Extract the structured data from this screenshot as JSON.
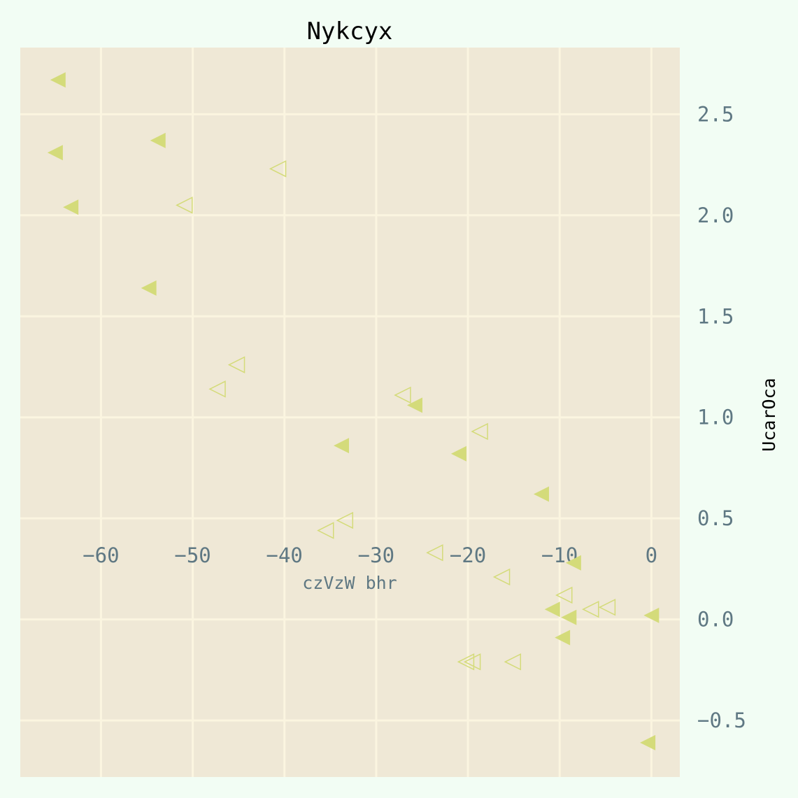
{
  "chart_data": {
    "type": "scatter",
    "title": "Nykcyx",
    "xlabel": "czVzW bhr",
    "ylabel": "UcarOca",
    "xlim": [
      -68.8,
      3.1
    ],
    "ylim": [
      -0.78,
      2.83
    ],
    "xticks": [
      -60,
      -50,
      -40,
      -30,
      -20,
      -10,
      0
    ],
    "xtick_labels": [
      "−60",
      "−50",
      "−40",
      "−30",
      "−20",
      "−10",
      "0"
    ],
    "yticks": [
      -0.5,
      0.0,
      0.5,
      1.0,
      1.5,
      2.0,
      2.5
    ],
    "ytick_labels": [
      "−0.5",
      "0.0",
      "0.5",
      "1.0",
      "1.5",
      "2.0",
      "2.5"
    ],
    "grid": true,
    "marker": "triangle-left",
    "colors": {
      "background": "#f2fdf4",
      "plot_area": "#efe8d6",
      "grid": "#fbf5e0",
      "marker": "#d4db7a"
    },
    "series": [
      {
        "style": "filled",
        "x": [
          -64.7,
          -65.0,
          -53.8,
          -63.3,
          -54.8,
          -25.8,
          -33.8,
          -21.0,
          -12.0,
          -8.5,
          -10.8,
          -9.0,
          0.0,
          -9.7,
          -0.4
        ],
        "y": [
          2.67,
          2.31,
          2.37,
          2.04,
          1.64,
          1.06,
          0.86,
          0.82,
          0.62,
          0.28,
          0.05,
          0.01,
          0.02,
          -0.09,
          -0.61
        ]
      },
      {
        "style": "hollow",
        "x": [
          -40.7,
          -50.9,
          -45.2,
          -47.3,
          -27.1,
          -18.7,
          -33.4,
          -35.5,
          -23.6,
          -16.3,
          -9.5,
          -6.6,
          -4.8,
          -20.2,
          -19.5,
          -15.1
        ],
        "y": [
          2.23,
          2.05,
          1.26,
          1.14,
          1.11,
          0.93,
          0.49,
          0.44,
          0.33,
          0.21,
          0.12,
          0.05,
          0.06,
          -0.21,
          -0.21,
          -0.21
        ]
      }
    ]
  }
}
